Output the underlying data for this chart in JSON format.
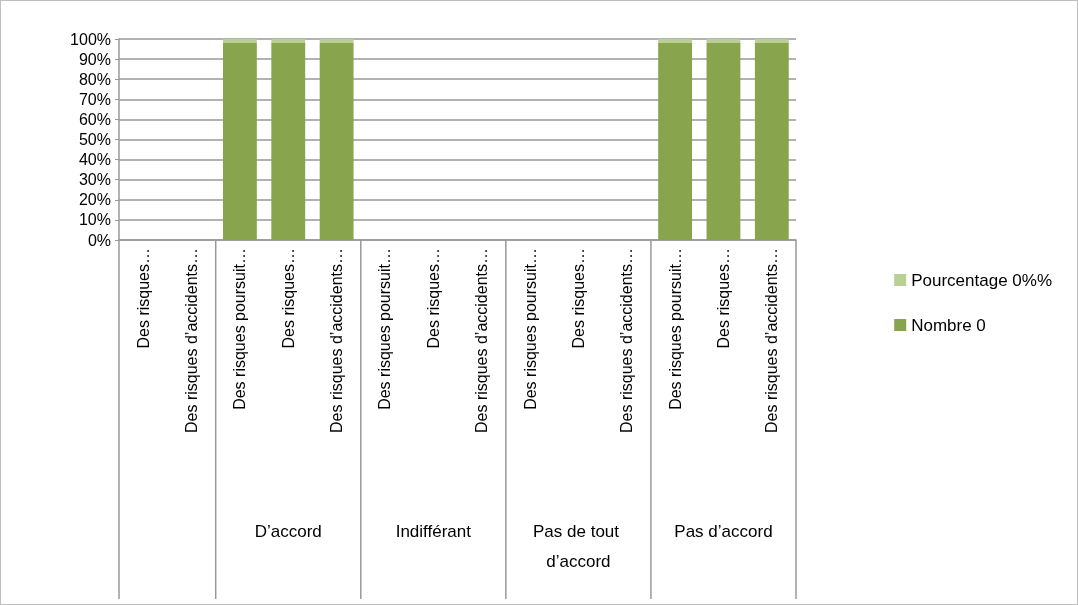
{
  "chart_data": {
    "type": "bar",
    "stacked": true,
    "categories": [
      "Des risques…",
      "Des risques d’accidents…",
      "Des risques poursuit…",
      "Des risques…",
      "Des risques d’accidents…",
      "Des risques poursuit…",
      "Des risques…",
      "Des risques d’accidents…",
      "Des risques poursuit…",
      "Des risques…",
      "Des risques d’accidents…",
      "Des risques poursuit…",
      "Des risques…",
      "Des risques d’accidents…"
    ],
    "annotations": [
      "D’accord",
      "Indifférant",
      "Pas de tout d’accord",
      "Pas d’accord"
    ],
    "series": [
      {
        "name": "Nombre 0",
        "color": "#88a44d",
        "values": [
          null,
          null,
          98,
          98,
          98,
          null,
          null,
          null,
          null,
          null,
          null,
          98,
          98,
          98
        ]
      },
      {
        "name": "Pourcentage 0%%",
        "color": "#b9cf96",
        "values": [
          null,
          null,
          2,
          2,
          2,
          null,
          null,
          null,
          null,
          null,
          null,
          2,
          2,
          2
        ]
      }
    ],
    "ylim": [
      0,
      100
    ],
    "yticks": [
      {
        "value": 0,
        "label": "0%"
      },
      {
        "value": 10,
        "label": "10%"
      },
      {
        "value": 20,
        "label": "20%"
      },
      {
        "value": 30,
        "label": "30%"
      },
      {
        "value": 40,
        "label": "40%"
      },
      {
        "value": 50,
        "label": "50%"
      },
      {
        "value": 60,
        "label": "60%"
      },
      {
        "value": 70,
        "label": "70%"
      },
      {
        "value": 80,
        "label": "80%"
      },
      {
        "value": 90,
        "label": "90%"
      },
      {
        "value": 100,
        "label": "100%"
      }
    ],
    "grid": "y",
    "legend": "right"
  }
}
